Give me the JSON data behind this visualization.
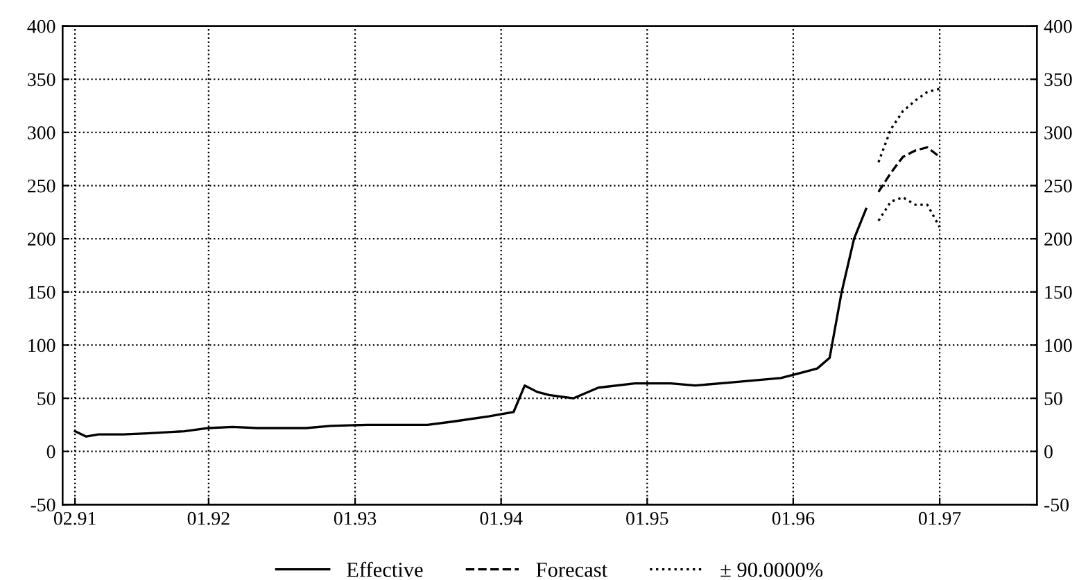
{
  "chart_data": {
    "type": "line",
    "xlim": [
      "1991-01",
      "1997-09"
    ],
    "xticks": [
      {
        "value": "1991-02",
        "label": "02.91"
      },
      {
        "value": "1992-01",
        "label": "01.92"
      },
      {
        "value": "1993-01",
        "label": "01.93"
      },
      {
        "value": "1994-01",
        "label": "01.94"
      },
      {
        "value": "1995-01",
        "label": "01.95"
      },
      {
        "value": "1996-01",
        "label": "01.96"
      },
      {
        "value": "1997-01",
        "label": "01.97"
      }
    ],
    "ylim": [
      -50,
      400
    ],
    "yticks": [
      -50,
      0,
      50,
      100,
      150,
      200,
      250,
      300,
      350,
      400
    ],
    "y2lim": [
      -50,
      400
    ],
    "y2ticks": [
      -50,
      0,
      50,
      100,
      150,
      200,
      250,
      300,
      350,
      400
    ],
    "grid": true,
    "legend": "bottom",
    "marker": "none",
    "series": [
      {
        "name": "Effective",
        "color": "#000000",
        "line_style": "solid",
        "x": [
          "1991-02",
          "1991-03",
          "1991-04",
          "1991-06",
          "1991-08",
          "1991-11",
          "1992-01",
          "1992-03",
          "1992-05",
          "1992-09",
          "1992-11",
          "1993-02",
          "1993-07",
          "1993-09",
          "1993-12",
          "1994-02",
          "1994-03",
          "1994-04",
          "1994-05",
          "1994-07",
          "1994-09",
          "1994-12",
          "1995-03",
          "1995-05",
          "1995-08",
          "1995-12",
          "1996-02",
          "1996-03",
          "1996-04",
          "1996-05",
          "1996-06",
          "1996-07"
        ],
        "values": [
          19,
          14,
          16,
          16,
          17,
          19,
          22,
          23,
          22,
          22,
          24,
          25,
          25,
          28,
          33,
          37,
          62,
          56,
          53,
          50,
          60,
          64,
          64,
          62,
          65,
          69,
          75,
          78,
          88,
          150,
          200,
          228
        ]
      },
      {
        "name": "Forecast",
        "color": "#000000",
        "line_style": "dashed",
        "x": [
          "1996-08",
          "1996-09",
          "1996-10",
          "1996-11",
          "1996-12",
          "1997-01"
        ],
        "values": [
          244,
          262,
          277,
          283,
          286,
          277
        ]
      },
      {
        "name": "± 90.0000%",
        "color": "#000000",
        "line_style": "dotted",
        "x": [
          "1996-08",
          "1996-09",
          "1996-10",
          "1996-11",
          "1996-12",
          "1997-01"
        ],
        "values": [
          217,
          235,
          239,
          232,
          232,
          211
        ]
      },
      {
        "color": "#000000",
        "line_style": "dotted",
        "x": [
          "1996-08",
          "1996-09",
          "1996-10",
          "1996-11",
          "1996-12",
          "1997-01"
        ],
        "values": [
          272,
          303,
          320,
          330,
          338,
          341
        ]
      }
    ]
  }
}
